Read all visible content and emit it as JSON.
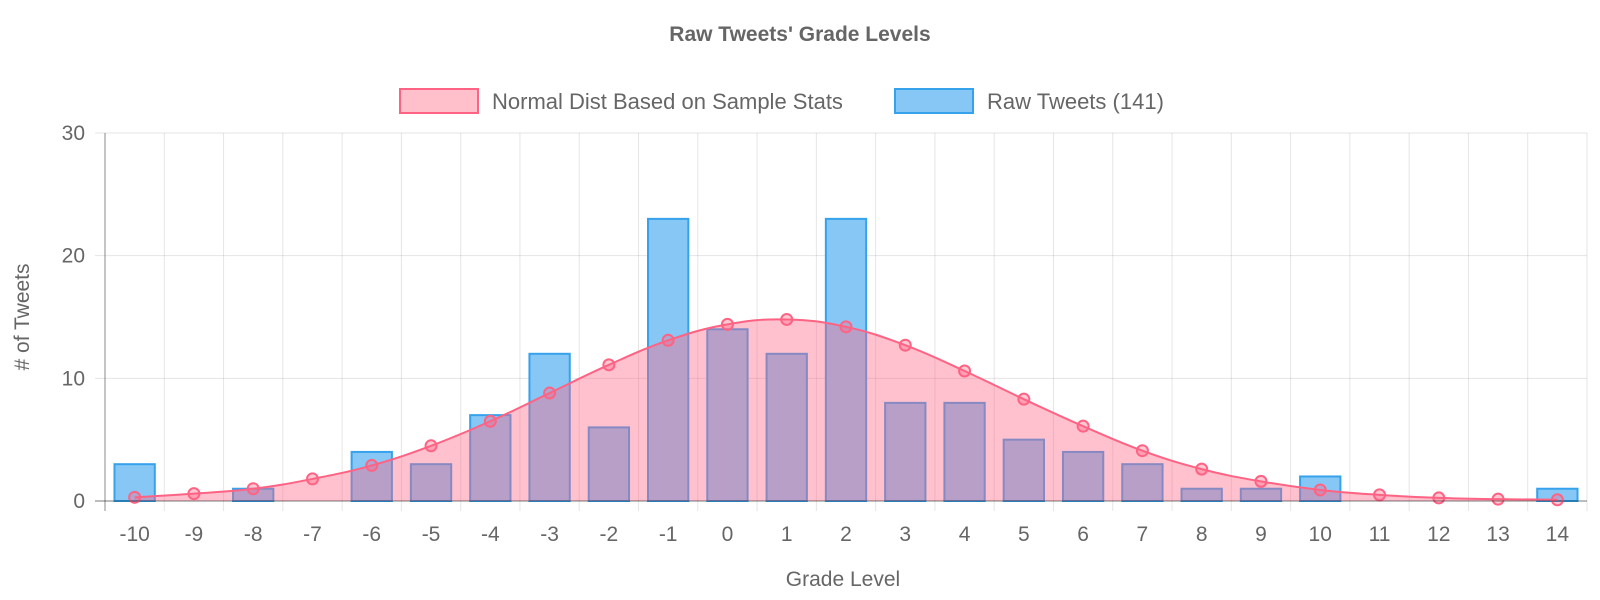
{
  "chart_data": {
    "type": "bar",
    "title": "Raw Tweets' Grade Levels",
    "xlabel": "Grade Level",
    "ylabel": "# of Tweets",
    "ylim": [
      0,
      30
    ],
    "yticks": [
      0,
      10,
      20,
      30
    ],
    "grid": true,
    "legend_position": "top-center",
    "categories": [
      -10,
      -9,
      -8,
      -7,
      -6,
      -5,
      -4,
      -3,
      -2,
      -1,
      0,
      1,
      2,
      3,
      4,
      5,
      6,
      7,
      8,
      9,
      10,
      11,
      12,
      13,
      14
    ],
    "series": [
      {
        "name": "Normal Dist Based on Sample Stats",
        "type": "area",
        "fill_color": "#ffc0cb",
        "line_color": "#ff6384",
        "values": [
          0.3,
          0.6,
          1.0,
          1.8,
          2.9,
          4.5,
          6.5,
          8.8,
          11.1,
          13.1,
          14.4,
          14.8,
          14.2,
          12.7,
          10.6,
          8.3,
          6.1,
          4.1,
          2.6,
          1.6,
          0.9,
          0.5,
          0.25,
          0.15,
          0.1
        ]
      },
      {
        "name": "Raw Tweets (141)",
        "type": "bar",
        "fill_color": "#87c7f5",
        "line_color": "#36a2eb",
        "values": [
          3,
          0,
          1,
          0,
          4,
          3,
          7,
          12,
          6,
          23,
          14,
          12,
          23,
          8,
          8,
          5,
          4,
          3,
          1,
          1,
          2,
          0,
          0,
          0,
          1
        ]
      }
    ]
  }
}
